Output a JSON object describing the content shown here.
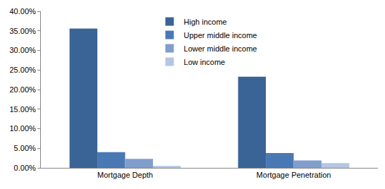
{
  "chart_data": {
    "type": "bar",
    "categories": [
      "Mortgage Depth",
      "Mortgage Penetration"
    ],
    "series": [
      {
        "name": "High income",
        "color": "#3b6496",
        "values": [
          35.6,
          23.3
        ]
      },
      {
        "name": "Upper middle income",
        "color": "#4a78b5",
        "values": [
          4.0,
          3.8
        ]
      },
      {
        "name": "Lower middle income",
        "color": "#809ecd",
        "values": [
          2.3,
          1.9
        ]
      },
      {
        "name": "Low income",
        "color": "#b4c6e4",
        "values": [
          0.5,
          1.2
        ]
      }
    ],
    "ylim": [
      0,
      40
    ],
    "yticks": [
      {
        "value": 0,
        "label": "0.00%"
      },
      {
        "value": 5,
        "label": "5.00%"
      },
      {
        "value": 10,
        "label": "10.00%"
      },
      {
        "value": 15,
        "label": "15.00%"
      },
      {
        "value": 20,
        "label": "20.00%"
      },
      {
        "value": 25,
        "label": "25.00%"
      },
      {
        "value": 30,
        "label": "30.00%"
      },
      {
        "value": 35,
        "label": "35.00%"
      },
      {
        "value": 40,
        "label": "40.00%"
      }
    ],
    "grid": false,
    "legend": "top",
    "data_labels": false
  }
}
